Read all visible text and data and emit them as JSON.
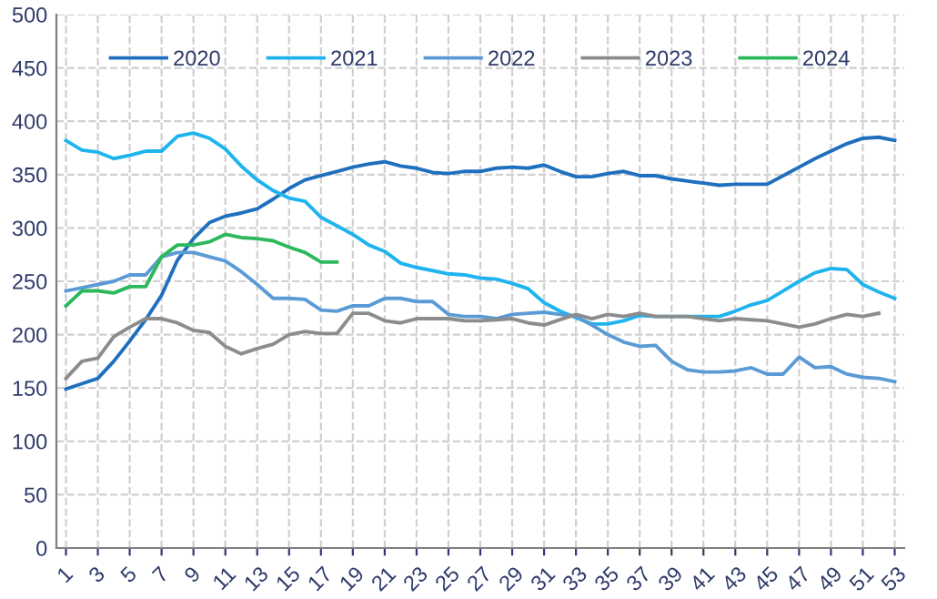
{
  "chart_data": {
    "type": "line",
    "categories": [
      "1",
      null,
      "3",
      null,
      "5",
      null,
      "7",
      null,
      "9",
      null,
      "11",
      null,
      "13",
      null,
      "15",
      null,
      "17",
      null,
      "19",
      null,
      "21",
      null,
      "23",
      null,
      "25",
      null,
      "27",
      null,
      "29",
      null,
      "31",
      null,
      "33",
      null,
      "35",
      null,
      "37",
      null,
      "39",
      null,
      "41",
      null,
      "43",
      null,
      "45",
      null,
      "47",
      null,
      "49",
      null,
      "51",
      null,
      "53"
    ],
    "series": [
      {
        "name": "2020",
        "color": "#1f6fbf",
        "values": [
          149,
          154,
          159,
          175,
          194,
          214,
          237,
          270,
          290,
          305,
          311,
          314,
          318,
          327,
          337,
          345,
          349,
          353,
          357,
          360,
          362,
          358,
          356,
          352,
          351,
          353,
          353,
          356,
          357,
          356,
          359,
          353,
          348,
          348,
          351,
          353,
          349,
          349,
          346,
          344,
          342,
          340,
          341,
          341,
          341,
          349,
          357,
          365,
          372,
          379,
          384,
          385,
          382
        ]
      },
      {
        "name": "2021",
        "color": "#1fb4ee",
        "values": [
          382,
          373,
          371,
          365,
          368,
          372,
          372,
          386,
          389,
          384,
          374,
          358,
          345,
          335,
          328,
          325,
          310,
          302,
          294,
          284,
          278,
          267,
          263,
          260,
          257,
          256,
          253,
          252,
          248,
          243,
          230,
          222,
          216,
          210,
          210,
          213,
          218,
          217,
          217,
          217,
          217,
          217,
          222,
          228,
          232,
          241,
          250,
          258,
          262,
          261,
          247,
          240,
          234
        ]
      },
      {
        "name": "2022",
        "color": "#5b9bd5",
        "values": [
          241,
          244,
          247,
          250,
          256,
          256,
          273,
          277,
          277,
          273,
          269,
          259,
          247,
          234,
          234,
          233,
          223,
          222,
          227,
          227,
          234,
          234,
          231,
          231,
          219,
          217,
          217,
          215,
          219,
          220,
          221,
          219,
          217,
          209,
          200,
          193,
          189,
          190,
          175,
          167,
          165,
          165,
          166,
          169,
          163,
          163,
          179,
          169,
          170,
          163,
          160,
          159,
          156
        ]
      },
      {
        "name": "2023",
        "color": "#8c8c8c",
        "values": [
          159,
          175,
          178,
          198,
          207,
          215,
          215,
          211,
          204,
          202,
          189,
          182,
          187,
          191,
          200,
          203,
          201,
          201,
          220,
          220,
          213,
          211,
          215,
          215,
          215,
          213,
          213,
          214,
          215,
          211,
          209,
          214,
          219,
          215,
          219,
          217,
          220,
          217,
          217,
          217,
          215,
          213,
          215,
          214,
          213,
          210,
          207,
          210,
          215,
          219,
          217,
          220,
          null
        ]
      },
      {
        "name": "2024",
        "color": "#2cb85c",
        "values": [
          227,
          241,
          241,
          239,
          245,
          245,
          273,
          284,
          284,
          287,
          294,
          291,
          290,
          288,
          282,
          277,
          268,
          268,
          null,
          null,
          null,
          null,
          null,
          null,
          null,
          null,
          null,
          null,
          null,
          null,
          null,
          null,
          null,
          null,
          null,
          null,
          null,
          null,
          null,
          null,
          null,
          null,
          null,
          null,
          null,
          null,
          null,
          null,
          null,
          null,
          null,
          null,
          null
        ]
      }
    ],
    "ylim": [
      0,
      500
    ],
    "yticks": [
      0,
      50,
      100,
      150,
      200,
      250,
      300,
      350,
      400,
      450,
      500
    ],
    "grid": true,
    "legend": "top",
    "marker": "none",
    "line_style": "solid"
  }
}
